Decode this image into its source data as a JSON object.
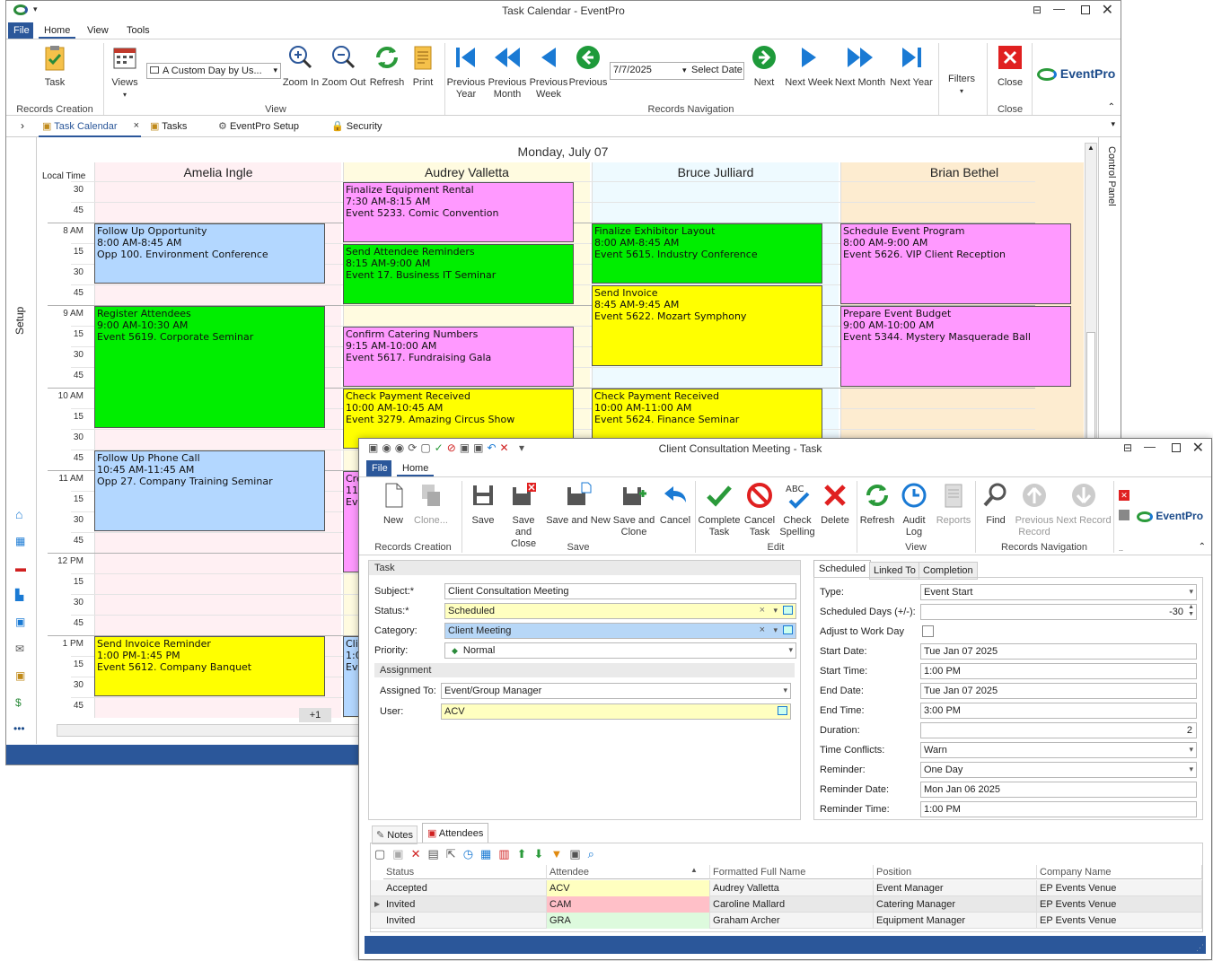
{
  "main_window": {
    "title": "Task Calendar - EventPro",
    "menu": [
      "File",
      "Home",
      "View",
      "Tools"
    ],
    "ribbon": {
      "task": "Task",
      "views": "Views",
      "view_select": "A Custom Day by Us...",
      "zoom_in": "Zoom In",
      "zoom_out": "Zoom Out",
      "refresh": "Refresh",
      "print": "Print",
      "prev_year_1": "Previous",
      "prev_year_2": "Year",
      "prev_month_1": "Previous",
      "prev_month_2": "Month",
      "prev_week_1": "Previous",
      "prev_week_2": "Week",
      "previous": "Previous",
      "date": "7/7/2025",
      "select_date": "Select Date",
      "next": "Next",
      "next_week": "Next Week",
      "next_month": "Next Month",
      "next_year": "Next Year",
      "filters": "Filters",
      "close": "Close",
      "groups": {
        "records_creation": "Records Creation",
        "view": "View",
        "records_navigation": "Records Navigation",
        "close": "Close"
      }
    },
    "tabs": [
      "Task Calendar",
      "Tasks",
      "EventPro Setup",
      "Security"
    ],
    "side_label": "Setup",
    "control_panel": "Control Panel",
    "logo": "EventPro",
    "calendar": {
      "date_header": "Monday, July 07",
      "local_time": "Local Time",
      "resources": [
        "Amelia Ingle",
        "Audrey Valletta",
        "Bruce Julliard",
        "Brian Bethel"
      ],
      "time_rows": [
        "30",
        "45",
        "8 AM",
        "15",
        "30",
        "45",
        "9 AM",
        "15",
        "30",
        "45",
        "10 AM",
        "15",
        "30",
        "45",
        "11 AM",
        "15",
        "30",
        "45",
        "12 PM",
        "15",
        "30",
        "45",
        "1 PM",
        "15",
        "30",
        "45"
      ],
      "more": "+1",
      "events": [
        {
          "col": 0,
          "start": 2,
          "span": 3,
          "color": "#b3d7ff",
          "l1": "Follow Up Opportunity",
          "l2": "8:00 AM-8:45 AM",
          "l3": "Opp 100. Environment Conference"
        },
        {
          "col": 0,
          "start": 6,
          "span": 6,
          "color": "#00ee00",
          "l1": "Register Attendees",
          "l2": "9:00 AM-10:30 AM",
          "l3": "Event 5619. Corporate Seminar"
        },
        {
          "col": 0,
          "start": 13,
          "span": 4,
          "color": "#b3d7ff",
          "l1": "Follow Up Phone Call",
          "l2": "10:45 AM-11:45 AM",
          "l3": "Opp 27. Company Training Seminar"
        },
        {
          "col": 0,
          "start": 22,
          "span": 3,
          "color": "#ffff00",
          "l1": "Send Invoice Reminder",
          "l2": "1:00 PM-1:45 PM",
          "l3": "Event 5612. Company Banquet"
        },
        {
          "col": 1,
          "start": 0,
          "span": 3,
          "color": "#ff99ff",
          "l1": "Finalize Equipment Rental",
          "l2": "7:30 AM-8:15 AM",
          "l3": "Event 5233. Comic Convention"
        },
        {
          "col": 1,
          "start": 3,
          "span": 3,
          "color": "#00ee00",
          "l1": "Send Attendee Reminders",
          "l2": "8:15 AM-9:00 AM",
          "l3": "Event 17. Business IT Seminar"
        },
        {
          "col": 1,
          "start": 7,
          "span": 3,
          "color": "#ff99ff",
          "l1": "Confirm Catering Numbers",
          "l2": "9:15 AM-10:00 AM",
          "l3": "Event 5617. Fundraising Gala"
        },
        {
          "col": 1,
          "start": 10,
          "span": 3,
          "color": "#ffff00",
          "l1": "Check Payment Received",
          "l2": "10:00 AM-10:45 AM",
          "l3": "Event 3279. Amazing Circus Show"
        },
        {
          "col": 1,
          "start": 14,
          "span": 5,
          "color": "#ff99ff",
          "l1": "Crea",
          "l2": "11:0",
          "l3": "Ever"
        },
        {
          "col": 1,
          "start": 22,
          "span": 4,
          "color": "#b3d7ff",
          "l1": "Clier",
          "l2": "1:00",
          "l3": "Ever"
        },
        {
          "col": 2,
          "start": 2,
          "span": 3,
          "color": "#00ee00",
          "l1": "Finalize Exhibitor Layout",
          "l2": "8:00 AM-8:45 AM",
          "l3": "Event 5615. Industry Conference"
        },
        {
          "col": 2,
          "start": 5,
          "span": 4,
          "color": "#ffff00",
          "l1": "Send Invoice",
          "l2": "8:45 AM-9:45 AM",
          "l3": "Event 5622. Mozart Symphony"
        },
        {
          "col": 2,
          "start": 10,
          "span": 3,
          "color": "#ffff00",
          "l1": "Check Payment Received",
          "l2": "10:00 AM-11:00 AM",
          "l3": "Event 5624. Finance Seminar"
        },
        {
          "col": 3,
          "start": 2,
          "span": 4,
          "color": "#ff99ff",
          "l1": "Schedule Event Program",
          "l2": "8:00 AM-9:00 AM",
          "l3": "Event 5626. VIP Client Reception"
        },
        {
          "col": 3,
          "start": 6,
          "span": 4,
          "color": "#ff99ff",
          "l1": "Prepare Event Budget",
          "l2": "9:00 AM-10:00 AM",
          "l3": "Event 5344. Mystery Masquerade Ball"
        }
      ]
    }
  },
  "task_window": {
    "title": "Client Consultation Meeting - Task",
    "menu": [
      "File",
      "Home"
    ],
    "ribbon": {
      "new": "New",
      "clone": "Clone...",
      "save": "Save",
      "save_close_1": "Save and",
      "save_close_2": "Close",
      "save_new": "Save and New",
      "save_clone_1": "Save and",
      "save_clone_2": "Clone",
      "cancel": "Cancel",
      "complete_1": "Complete",
      "complete_2": "Task",
      "cancel_task_1": "Cancel",
      "cancel_task_2": "Task",
      "check_1": "Check",
      "check_2": "Spelling",
      "delete": "Delete",
      "refresh": "Refresh",
      "audit_1": "Audit",
      "audit_2": "Log",
      "reports": "Reports",
      "find": "Find",
      "prev_rec_1": "Previous",
      "prev_rec_2": "Record",
      "next_rec": "Next Record",
      "groups": {
        "records_creation": "Records Creation",
        "save": "Save",
        "edit": "Edit",
        "view": "View",
        "records_navigation": "Records Navigation"
      }
    },
    "task_section": "Task",
    "subject_label": "Subject:*",
    "subject": "Client Consultation Meeting",
    "status_label": "Status:*",
    "status": "Scheduled",
    "category_label": "Category:",
    "category": "Client Meeting",
    "priority_label": "Priority:",
    "priority": "Normal",
    "assignment_section": "Assignment",
    "assigned_to_label": "Assigned To:",
    "assigned_to": "Event/Group Manager",
    "user_label": "User:",
    "user": "ACV",
    "tabs": [
      "Scheduled",
      "Linked To",
      "Completion"
    ],
    "sched": [
      {
        "label": "Type:",
        "value": "Event Start"
      },
      {
        "label": "Scheduled Days (+/-):",
        "value": "-30"
      },
      {
        "label": "Adjust to Work Day",
        "value": ""
      },
      {
        "label": "Start Date:",
        "value": "Tue Jan 07 2025"
      },
      {
        "label": "Start Time:",
        "value": "1:00 PM"
      },
      {
        "label": "End Date:",
        "value": "Tue Jan 07 2025"
      },
      {
        "label": "End Time:",
        "value": "3:00 PM"
      },
      {
        "label": "Duration:",
        "value": "2"
      },
      {
        "label": "Time Conflicts:",
        "value": "Warn"
      },
      {
        "label": "Reminder:",
        "value": "One Day"
      },
      {
        "label": "Reminder Date:",
        "value": "Mon Jan 06 2025"
      },
      {
        "label": "Reminder Time:",
        "value": "1:00 PM"
      }
    ],
    "bottom_tabs": [
      "Notes",
      "Attendees"
    ],
    "grid_headers": [
      "Status",
      "Attendee",
      "Formatted Full Name",
      "Position",
      "Company Name"
    ],
    "grid_rows": [
      {
        "status": "Accepted",
        "attendee": "ACV",
        "att_color": "#ffffc0",
        "name": "Audrey Valletta",
        "position": "Event Manager",
        "company": "EP Events Venue"
      },
      {
        "status": "Invited",
        "attendee": "CAM",
        "att_color": "#ffc0c8",
        "name": "Caroline Mallard",
        "position": "Catering Manager",
        "company": "EP Events Venue"
      },
      {
        "status": "Invited",
        "attendee": "GRA",
        "att_color": "#ddfadd",
        "name": "Graham Archer",
        "position": "Equipment Manager",
        "company": "EP Events Venue"
      }
    ],
    "logo": "EventPro"
  }
}
